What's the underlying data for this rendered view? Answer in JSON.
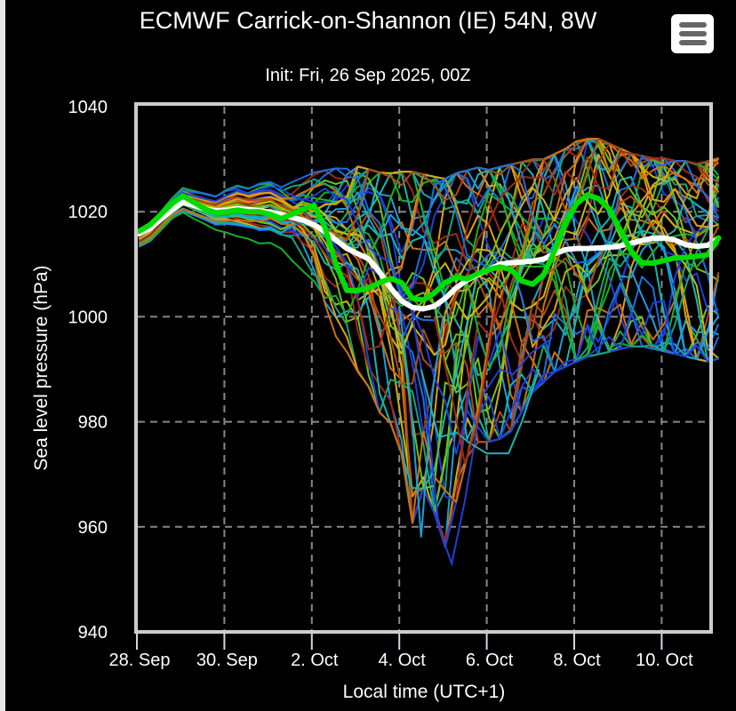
{
  "header": {
    "title": "ECMWF Carrick-on-Shannon (IE) 54N, 8W",
    "subtitle": "Init: Fri, 26 Sep 2025, 00Z",
    "menu_icon": "hamburger-menu-icon"
  },
  "chart_data": {
    "type": "line",
    "title": "ECMWF Carrick-on-Shannon (IE) 54N, 8W",
    "subtitle": "Init: Fri, 26 Sep 2025, 00Z",
    "xlabel": "Local time (UTC+1)",
    "ylabel": "Sea level pressure (hPa)",
    "ylim": [
      940,
      1040
    ],
    "yticks": [
      940,
      960,
      980,
      1000,
      1020,
      1040
    ],
    "xlim_days_from_28sep": [
      -0.04,
      13.15
    ],
    "xticks": [
      {
        "day": 0,
        "label": "28. Sep"
      },
      {
        "day": 2,
        "label": "30. Sep"
      },
      {
        "day": 4,
        "label": "2. Oct"
      },
      {
        "day": 6,
        "label": "4. Oct"
      },
      {
        "day": 8,
        "label": "6. Oct"
      },
      {
        "day": 10,
        "label": "8. Oct"
      },
      {
        "day": 12,
        "label": "10. Oct"
      }
    ],
    "grid": true,
    "time_step_hours": 6,
    "series_start_day": 0.05,
    "colors": {
      "mean": "#ffffff",
      "control": "#00dd00",
      "ensemble_palette": [
        "#1f3fd6",
        "#1a6fe0",
        "#1aa0d8",
        "#17b5b5",
        "#16a870",
        "#18b02a",
        "#6cc21a",
        "#c8b814",
        "#e0a010",
        "#d07010",
        "#b04a10",
        "#a02818"
      ]
    },
    "series": [
      {
        "name": "Ensemble mean",
        "values": [
          1015.8,
          1016.8,
          1018.6,
          1020.3,
          1021.8,
          1021.2,
          1020.5,
          1020.2,
          1020.3,
          1020.6,
          1020.4,
          1020.2,
          1019.9,
          1019.5,
          1018.9,
          1018.4,
          1017.5,
          1016.2,
          1014.6,
          1013.0,
          1012.0,
          1011.0,
          1008.5,
          1005.5,
          1003.0,
          1001.8,
          1001.5,
          1002.0,
          1003.5,
          1005.5,
          1007.0,
          1008.0,
          1009.0,
          1010.0,
          1010.3,
          1010.4,
          1010.6,
          1011.0,
          1012.0,
          1012.8,
          1013.0,
          1013.0,
          1013.1,
          1013.2,
          1013.5,
          1014.0,
          1014.5,
          1014.9,
          1015.0,
          1014.6,
          1013.7,
          1013.4,
          1013.6,
          1015.0
        ]
      },
      {
        "name": "Control",
        "values": [
          1016.3,
          1017.5,
          1019.5,
          1021.5,
          1023.0,
          1021.8,
          1020.5,
          1019.8,
          1020.0,
          1020.3,
          1020.0,
          1020.0,
          1019.5,
          1018.7,
          1019.5,
          1020.5,
          1021.2,
          1017.0,
          1010.0,
          1005.0,
          1005.0,
          1005.5,
          1006.5,
          1007.3,
          1006.5,
          1003.5,
          1003.2,
          1004.5,
          1006.5,
          1007.5,
          1007.2,
          1008.2,
          1009.0,
          1009.5,
          1009.0,
          1006.8,
          1006.2,
          1008.0,
          1012.5,
          1018.0,
          1021.5,
          1023.2,
          1022.5,
          1020.5,
          1016.5,
          1012.5,
          1010.3,
          1010.2,
          1010.7,
          1011.2,
          1011.3,
          1011.5,
          1011.8,
          1015.0
        ]
      }
    ],
    "ensemble_members": 50,
    "ensemble_notes": "Members spread ~1012-1026 hPa through 1 Oct, diverge strongly after 2 Oct; deepest members reach ~958 hPa near 4 Oct 06h and ~953 hPa near 5 Oct 00h; highest ~1035 hPa near 8-9 Oct; end spread ~990-1031 hPa on 11 Oct.",
    "ensemble_envelope": {
      "upper": [
        1017.0,
        1018.5,
        1021.0,
        1023.5,
        1025.5,
        1025.0,
        1024.5,
        1024.0,
        1025.5,
        1026.5,
        1026.0,
        1027.0,
        1027.5,
        1026.5,
        1026.0,
        1027.0,
        1028.0,
        1028.5,
        1029.0,
        1029.0,
        1029.5,
        1029.0,
        1028.5,
        1028.5,
        1029.0,
        1029.0,
        1028.5,
        1028.0,
        1027.5,
        1028.5,
        1029.0,
        1029.5,
        1029.0,
        1029.5,
        1030.0,
        1030.5,
        1031.0,
        1031.0,
        1032.0,
        1033.0,
        1034.5,
        1035.0,
        1035.0,
        1034.0,
        1033.0,
        1032.0,
        1031.5,
        1031.0,
        1031.0,
        1030.5,
        1030.5,
        1030.0,
        1030.5,
        1031.0
      ],
      "lower": [
        1012.5,
        1013.5,
        1015.5,
        1017.5,
        1018.5,
        1017.5,
        1016.5,
        1015.5,
        1015.0,
        1014.5,
        1014.0,
        1013.0,
        1013.0,
        1012.0,
        1010.0,
        1008.0,
        1004.0,
        999.0,
        995.0,
        992.0,
        988.0,
        985.0,
        980.0,
        978.0,
        972.0,
        958.0,
        965.0,
        960.0,
        953.0,
        962.0,
        971.0,
        974.0,
        974.0,
        974.5,
        976.0,
        980.0,
        984.0,
        986.0,
        988.0,
        989.0,
        990.0,
        991.0,
        991.5,
        992.0,
        992.5,
        993.0,
        993.0,
        992.5,
        992.0,
        991.5,
        991.0,
        990.5,
        990.0,
        990.5
      ]
    }
  }
}
